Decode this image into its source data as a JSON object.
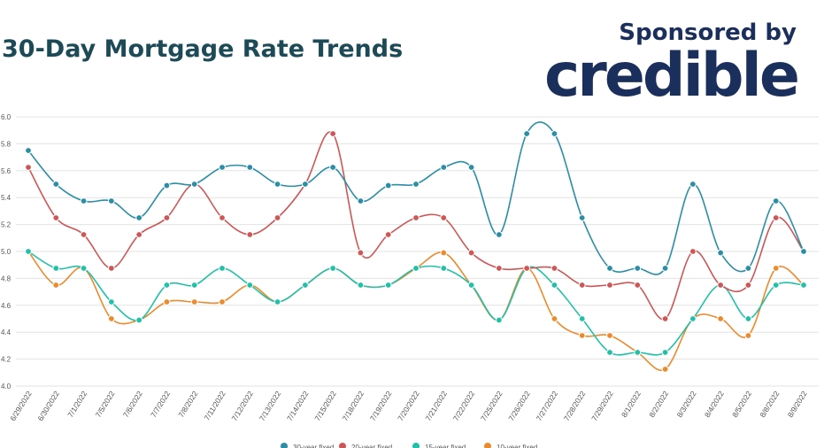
{
  "header": {
    "title": "30-Day Mortgage Rate Trends",
    "sponsor_label": "Sponsored by",
    "brand": "credible"
  },
  "colors": {
    "title": "#1c4a57",
    "brand": "#1b2f5d",
    "grid": "#e3e3e3",
    "axis_text": "#555555"
  },
  "chart_data": {
    "type": "line",
    "title": "30-Day Mortgage Rate Trends",
    "xlabel": "",
    "ylabel": "",
    "ylim": [
      4.0,
      6.0
    ],
    "yticks": [
      "6.0",
      "5.8",
      "5.6",
      "5.4",
      "5.2",
      "5.0",
      "4.8",
      "4.6",
      "4.4",
      "4.2",
      "4.0"
    ],
    "grid": true,
    "legend_position": "bottom",
    "x": [
      "6/29/2022",
      "6/30/2022",
      "7/1/2022",
      "7/5/2022",
      "7/6/2022",
      "7/7/2022",
      "7/8/2022",
      "7/11/2022",
      "7/12/2022",
      "7/13/2022",
      "7/14/2022",
      "7/15/2022",
      "7/18/2022",
      "7/19/2022",
      "7/20/2022",
      "7/21/2022",
      "7/22/2022",
      "7/25/2022",
      "7/26/2022",
      "7/27/2022",
      "7/28/2022",
      "7/29/2022",
      "8/1/2022",
      "8/2/2022",
      "8/3/2022",
      "8/4/2022",
      "8/5/2022",
      "8/8/2022",
      "8/9/2022"
    ],
    "series": [
      {
        "name": "30-year fixed",
        "color": "#2a8ea6",
        "values": [
          5.75,
          5.5,
          5.375,
          5.375,
          5.25,
          5.49,
          5.5,
          5.625,
          5.625,
          5.5,
          5.5,
          5.625,
          5.375,
          5.49,
          5.5,
          5.625,
          5.625,
          5.125,
          5.875,
          5.875,
          5.25,
          4.875,
          4.875,
          4.875,
          5.5,
          4.99,
          4.875,
          5.375,
          5.0
        ]
      },
      {
        "name": "20-year fixed",
        "color": "#cf5656",
        "values": [
          5.625,
          5.25,
          5.125,
          4.875,
          5.125,
          5.25,
          5.5,
          5.25,
          5.125,
          5.25,
          5.5,
          5.875,
          4.99,
          5.125,
          5.25,
          5.25,
          4.99,
          4.875,
          4.875,
          4.875,
          4.75,
          4.75,
          4.75,
          4.5,
          5.0,
          4.75,
          4.75,
          5.25,
          5.0
        ]
      },
      {
        "name": "15-year fixed",
        "color": "#21c0a8",
        "values": [
          5.0,
          4.875,
          4.875,
          4.625,
          4.49,
          4.75,
          4.75,
          4.875,
          4.75,
          4.625,
          4.75,
          4.875,
          4.75,
          4.75,
          4.875,
          4.875,
          4.75,
          4.49,
          4.875,
          4.75,
          4.5,
          4.25,
          4.25,
          4.25,
          4.5,
          4.75,
          4.5,
          4.75,
          4.75
        ]
      },
      {
        "name": "10-year fixed",
        "color": "#ec8a2c",
        "values": [
          5.0,
          4.75,
          4.875,
          4.5,
          4.49,
          4.625,
          4.625,
          4.625,
          4.75,
          4.625,
          4.75,
          4.875,
          4.75,
          4.75,
          4.875,
          4.99,
          4.75,
          4.49,
          4.875,
          4.5,
          4.375,
          4.375,
          4.25,
          4.125,
          4.5,
          4.5,
          4.375,
          4.875,
          4.75
        ]
      }
    ]
  }
}
